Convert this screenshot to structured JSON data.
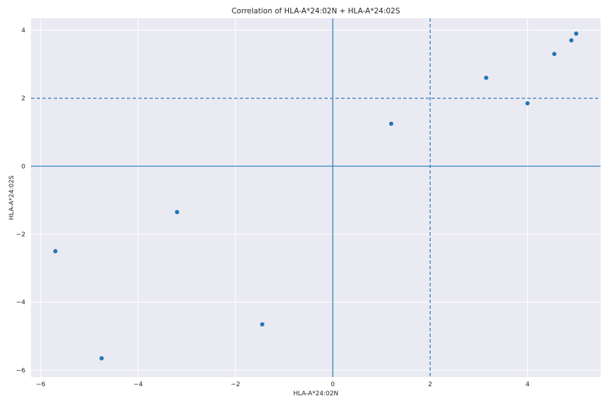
{
  "chart_data": {
    "type": "scatter",
    "title": "Correlation of HLA-A*24:02N + HLA-A*24:02S",
    "xlabel": "HLA-A*24:02N",
    "ylabel": "HLA-A*24:02S",
    "xlim": [
      -6.2,
      5.5
    ],
    "ylim": [
      -6.2,
      4.35
    ],
    "xticks": [
      -6,
      -4,
      -2,
      0,
      2,
      4
    ],
    "yticks": [
      -6,
      -4,
      -2,
      0,
      2,
      4
    ],
    "grid": true,
    "point_color": "#1f77b4",
    "background": "#eaeaf2",
    "reference_lines": [
      {
        "orientation": "vertical",
        "value": 0,
        "style": "solid"
      },
      {
        "orientation": "horizontal",
        "value": 0,
        "style": "solid"
      },
      {
        "orientation": "vertical",
        "value": 2,
        "style": "dashed"
      },
      {
        "orientation": "horizontal",
        "value": 2,
        "style": "dashed"
      }
    ],
    "points": [
      {
        "x": -5.7,
        "y": -2.5
      },
      {
        "x": -4.75,
        "y": -5.65
      },
      {
        "x": -3.2,
        "y": -1.35
      },
      {
        "x": -1.45,
        "y": -4.65
      },
      {
        "x": 1.2,
        "y": 1.25
      },
      {
        "x": 3.15,
        "y": 2.6
      },
      {
        "x": 4.0,
        "y": 1.85
      },
      {
        "x": 4.55,
        "y": 3.3
      },
      {
        "x": 4.9,
        "y": 3.7
      },
      {
        "x": 5.0,
        "y": 3.9
      }
    ]
  }
}
